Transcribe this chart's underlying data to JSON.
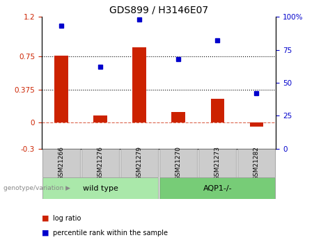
{
  "title": "GDS899 / H3146E07",
  "samples": [
    "GSM21266",
    "GSM21276",
    "GSM21279",
    "GSM21270",
    "GSM21273",
    "GSM21282"
  ],
  "log_ratio": [
    0.76,
    0.08,
    0.85,
    0.12,
    0.27,
    -0.05
  ],
  "percentile": [
    93,
    62,
    98,
    68,
    82,
    42
  ],
  "bar_color": "#cc2200",
  "dot_color": "#0000cc",
  "ylim_left": [
    -0.3,
    1.2
  ],
  "ylim_right": [
    0,
    100
  ],
  "yticks_left": [
    -0.3,
    0,
    0.375,
    0.75,
    1.2
  ],
  "yticks_right": [
    0,
    25,
    50,
    75,
    100
  ],
  "hlines": [
    0.375,
    0.75
  ],
  "zero_line": 0,
  "group1_label": "wild type",
  "group2_label": "AQP1-/-",
  "group1_indices": [
    0,
    1,
    2
  ],
  "group2_indices": [
    3,
    4,
    5
  ],
  "group_label_prefix": "genotype/variation",
  "legend_bar_label": "log ratio",
  "legend_dot_label": "percentile rank within the sample",
  "bar_width": 0.35,
  "group1_bg": "#aae8aa",
  "group2_bg": "#77cc77",
  "label_box_bg": "#cccccc",
  "group_arrow": "▶"
}
